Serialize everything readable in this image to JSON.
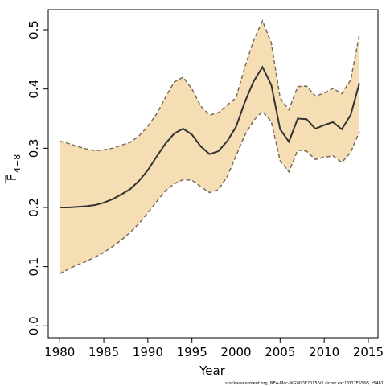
{
  "chart_data": {
    "type": "band_line",
    "x_label": "Year",
    "y_label": "F",
    "y_label_sub": "4−8",
    "footnote": "stockassessment.org, NEA-Mac-WGWIDE2015-V1 ricker excl2007ESSNS, r5481",
    "x": [
      1980,
      1981,
      1982,
      1983,
      1984,
      1985,
      1986,
      1987,
      1988,
      1989,
      1990,
      1991,
      1992,
      1993,
      1994,
      1995,
      1996,
      1997,
      1998,
      1999,
      2000,
      2001,
      2002,
      2003,
      2004,
      2005,
      2006,
      2007,
      2008,
      2009,
      2010,
      2011,
      2012,
      2013,
      2014
    ],
    "values": [
      0.2,
      0.2,
      0.201,
      0.202,
      0.204,
      0.208,
      0.214,
      0.222,
      0.231,
      0.245,
      0.263,
      0.286,
      0.308,
      0.325,
      0.333,
      0.323,
      0.303,
      0.29,
      0.295,
      0.312,
      0.336,
      0.378,
      0.413,
      0.437,
      0.407,
      0.332,
      0.311,
      0.35,
      0.349,
      0.333,
      0.339,
      0.344,
      0.332,
      0.356,
      0.41
    ],
    "band": {
      "upper": [
        0.312,
        0.308,
        0.303,
        0.299,
        0.296,
        0.297,
        0.3,
        0.305,
        0.31,
        0.321,
        0.337,
        0.358,
        0.386,
        0.412,
        0.42,
        0.4,
        0.371,
        0.356,
        0.36,
        0.373,
        0.385,
        0.437,
        0.482,
        0.515,
        0.478,
        0.385,
        0.365,
        0.404,
        0.405,
        0.388,
        0.393,
        0.401,
        0.392,
        0.415,
        0.492
      ],
      "lower": [
        0.088,
        0.096,
        0.103,
        0.109,
        0.116,
        0.124,
        0.134,
        0.145,
        0.158,
        0.173,
        0.191,
        0.21,
        0.228,
        0.24,
        0.247,
        0.246,
        0.235,
        0.225,
        0.23,
        0.252,
        0.287,
        0.322,
        0.347,
        0.362,
        0.345,
        0.279,
        0.26,
        0.297,
        0.295,
        0.281,
        0.285,
        0.287,
        0.276,
        0.293,
        0.328
      ]
    },
    "color": "#333333",
    "band_color": "#f5deb3",
    "band_edge_color": "#7a6a5a",
    "xlim": [
      1978.7,
      2016.1
    ],
    "ylim": [
      -0.02,
      0.534
    ],
    "xticks": [
      1980,
      1985,
      1990,
      1995,
      2000,
      2005,
      2010,
      2015
    ],
    "yticks": [
      {
        "value": 0,
        "label": "0.0"
      },
      0.1,
      0.2,
      0.3,
      0.4,
      0.5
    ]
  }
}
